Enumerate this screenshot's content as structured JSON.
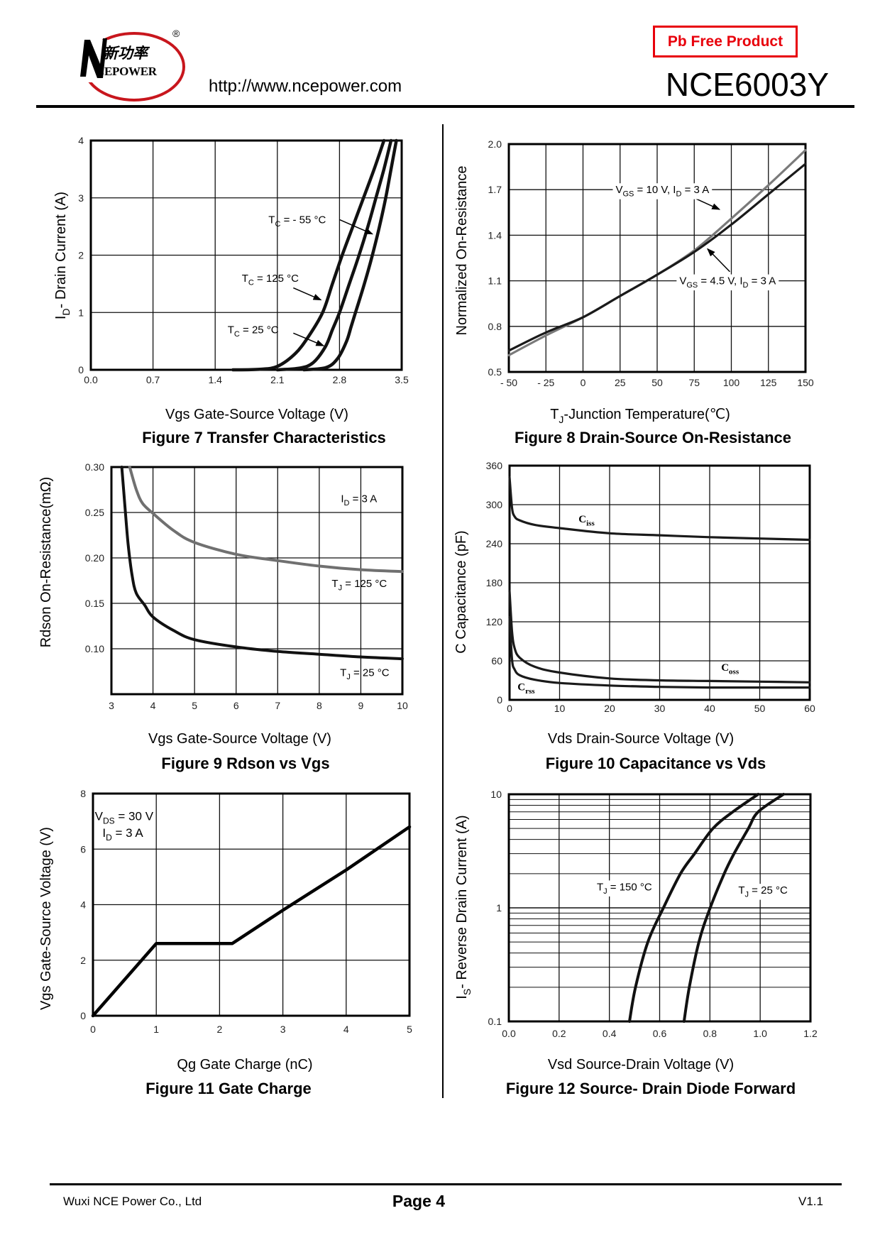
{
  "header": {
    "logo": {
      "cn": "新功率",
      "en": "CEPOWER",
      "registered": "®"
    },
    "url": "http://www.ncepower.com",
    "badge": "Pb Free Product",
    "part_number": "NCE6003Y",
    "brand_color": "#c8161d",
    "badge_color": "#e8000b"
  },
  "footer": {
    "company": "Wuxi NCE Power Co., Ltd",
    "page": "Page 4",
    "version": "V1.1"
  },
  "chart_data": [
    {
      "type": "line",
      "title": "Figure 7 Transfer Characteristics",
      "xlabel": {
        "main": "Vgs Gate-Source Voltage (V)"
      },
      "ylabel": {
        "main": "I",
        "sub": "D",
        "rest": "- Drain Current (A)"
      },
      "xlim": [
        0,
        3.5
      ],
      "ylim": [
        0,
        4
      ],
      "xticks": [
        0,
        0.7,
        1.4,
        2.1,
        2.8,
        3.5
      ],
      "xtick_labels": [
        "0.0",
        "0.7",
        "1.4",
        "2.1",
        "2.8",
        "3.5"
      ],
      "yticks": [
        0,
        1,
        2,
        3,
        4
      ],
      "ytick_labels": [
        "0",
        "1",
        "2",
        "3",
        "4"
      ],
      "grid": true,
      "series": [
        {
          "label": {
            "main": "T",
            "sub": "C",
            "rest": " = 125 °C"
          },
          "color": "#111111",
          "x": [
            1.6,
            1.9,
            2.1,
            2.3,
            2.45,
            2.61,
            2.72,
            2.83,
            2.95,
            3.07,
            3.19,
            3.3
          ],
          "y": [
            0,
            0.01,
            0.06,
            0.28,
            0.58,
            1.0,
            1.5,
            2.0,
            2.5,
            3.0,
            3.5,
            4.0
          ]
        },
        {
          "label": {
            "main": "T",
            "sub": "C",
            "rest": " = 25 °C"
          },
          "color": "#111111",
          "x": [
            2.1,
            2.35,
            2.5,
            2.64,
            2.72,
            2.8,
            2.91,
            3.02,
            3.12,
            3.21,
            3.3,
            3.38
          ],
          "y": [
            0,
            0.03,
            0.12,
            0.4,
            0.7,
            1.0,
            1.5,
            2.0,
            2.5,
            3.0,
            3.5,
            4.0
          ]
        },
        {
          "label": {
            "main": "T",
            "sub": "C",
            "rest": " = - 55 °C"
          },
          "color": "#111111",
          "x": [
            2.4,
            2.65,
            2.78,
            2.88,
            2.93,
            2.98,
            3.08,
            3.17,
            3.25,
            3.32,
            3.38,
            3.44
          ],
          "y": [
            0,
            0.04,
            0.2,
            0.5,
            0.75,
            1.0,
            1.5,
            2.0,
            2.5,
            3.0,
            3.5,
            4.0
          ]
        }
      ]
    },
    {
      "type": "line",
      "title": "Figure 8 Drain-Source On-Resistance",
      "xlabel": {
        "main": "T",
        "sub": "J",
        "rest": "-Junction Temperature(℃)"
      },
      "ylabel": {
        "main": "Normalized On-Resistance"
      },
      "xlim": [
        -50,
        150
      ],
      "ylim": [
        0.5,
        2.0
      ],
      "xticks": [
        -50,
        -25,
        0,
        25,
        50,
        75,
        100,
        125,
        150
      ],
      "xtick_labels": [
        "- 50",
        "- 25",
        "0",
        "25",
        "50",
        "75",
        "100",
        "125",
        "150"
      ],
      "yticks": [
        0.5,
        0.8,
        1.1,
        1.4,
        1.7,
        2.0
      ],
      "ytick_labels": [
        "0.5",
        "0.8",
        "1.1",
        "1.4",
        "1.7",
        "2.0"
      ],
      "grid": true,
      "series": [
        {
          "label": {
            "main": "V",
            "sub": "GS",
            "rest": " = 10 V, I",
            "sub2": "D",
            "rest2": " = 3 A"
          },
          "color": "#7a7a7a",
          "x": [
            -50,
            -25,
            0,
            25,
            50,
            75,
            100,
            125,
            150
          ],
          "y": [
            0.61,
            0.74,
            0.86,
            1.0,
            1.14,
            1.3,
            1.51,
            1.73,
            1.96
          ]
        },
        {
          "label": {
            "main": "V",
            "sub": "GS",
            "rest": " = 4.5 V, I",
            "sub2": "D",
            "rest2": " = 3 A"
          },
          "color": "#1a1a1a",
          "x": [
            -50,
            -25,
            0,
            25,
            50,
            75,
            100,
            125,
            150
          ],
          "y": [
            0.64,
            0.76,
            0.86,
            1.0,
            1.14,
            1.29,
            1.47,
            1.67,
            1.87
          ]
        }
      ]
    },
    {
      "type": "line",
      "title": "Figure 9 Rdson vs Vgs",
      "xlabel": {
        "main": "Vgs Gate-Source Voltage (V)"
      },
      "ylabel": {
        "main": "Rdson On-Resistance(mΩ)"
      },
      "xlim": [
        3,
        10
      ],
      "ylim": [
        0.05,
        0.3
      ],
      "xticks": [
        3,
        4,
        5,
        6,
        7,
        8,
        9,
        10
      ],
      "xtick_labels": [
        "3",
        "4",
        "5",
        "6",
        "7",
        "8",
        "9",
        "10"
      ],
      "yticks": [
        0.1,
        0.15,
        0.2,
        0.25,
        0.3
      ],
      "ytick_labels": [
        "0.10",
        "0.15",
        "0.20",
        "0.25",
        "0.30"
      ],
      "grid": true,
      "notes": [
        {
          "main": "I",
          "sub": "D",
          "rest": " = 3 A"
        }
      ],
      "series": [
        {
          "label": {
            "main": "T",
            "sub": "J",
            "rest": " = 125 °C"
          },
          "color": "#707070",
          "x": [
            3.44,
            3.6,
            3.75,
            4,
            4.5,
            5,
            6,
            7,
            8,
            9,
            10
          ],
          "y": [
            0.3,
            0.275,
            0.26,
            0.249,
            0.23,
            0.217,
            0.204,
            0.197,
            0.191,
            0.187,
            0.185
          ]
        },
        {
          "label": {
            "main": "T",
            "sub": "J",
            "rest": " = 25 °C"
          },
          "color": "#111111",
          "x": [
            3.25,
            3.32,
            3.4,
            3.5,
            3.6,
            3.8,
            4,
            4.5,
            5,
            6,
            7,
            8,
            9,
            10
          ],
          "y": [
            0.3,
            0.26,
            0.216,
            0.18,
            0.161,
            0.148,
            0.135,
            0.12,
            0.11,
            0.102,
            0.097,
            0.094,
            0.091,
            0.089
          ]
        }
      ]
    },
    {
      "type": "line",
      "title": "Figure 10 Capacitance vs Vds",
      "xlabel": {
        "main": "Vds Drain-Source Voltage (V)"
      },
      "ylabel": {
        "main": "C Capacitance (pF)"
      },
      "xlim": [
        0,
        60
      ],
      "ylim": [
        0,
        360
      ],
      "xticks": [
        0,
        10,
        20,
        30,
        40,
        50,
        60
      ],
      "xtick_labels": [
        "0",
        "10",
        "20",
        "30",
        "40",
        "50",
        "60"
      ],
      "yticks": [
        0,
        60,
        120,
        180,
        240,
        300,
        360
      ],
      "ytick_labels": [
        "0",
        "60",
        "120",
        "180",
        "240",
        "300",
        "360"
      ],
      "grid": true,
      "series": [
        {
          "label": {
            "main": "C",
            "sub": "iss"
          },
          "color": "#1a1a1a",
          "x": [
            0,
            0.5,
            1,
            2,
            5,
            10,
            20,
            30,
            40,
            50,
            60
          ],
          "y": [
            342,
            295,
            282,
            276,
            269,
            264,
            256,
            253,
            250,
            248,
            246
          ]
        },
        {
          "label": {
            "main": "C",
            "sub": "oss"
          },
          "color": "#1a1a1a",
          "x": [
            0,
            0.5,
            1,
            2,
            5,
            10,
            20,
            30,
            40,
            50,
            60
          ],
          "y": [
            167,
            105,
            80,
            65,
            51,
            42,
            33,
            30,
            29,
            28,
            27
          ]
        },
        {
          "label": {
            "main": "C",
            "sub": "rss"
          },
          "color": "#1a1a1a",
          "x": [
            0,
            0.5,
            1,
            2,
            5,
            10,
            20,
            30,
            40,
            50,
            60
          ],
          "y": [
            127,
            62,
            47,
            38,
            31,
            26,
            22,
            20,
            19,
            19,
            19
          ]
        }
      ]
    },
    {
      "type": "line",
      "title": "Figure 11 Gate Charge",
      "xlabel": {
        "main": "Qg Gate Charge (nC)"
      },
      "ylabel": {
        "main": "Vgs Gate-Source Voltage (V)"
      },
      "xlim": [
        0,
        5
      ],
      "ylim": [
        0,
        8
      ],
      "xticks": [
        0,
        1,
        2,
        3,
        4,
        5
      ],
      "xtick_labels": [
        "0",
        "1",
        "2",
        "3",
        "4",
        "5"
      ],
      "yticks": [
        0,
        2,
        4,
        6,
        8
      ],
      "ytick_labels": [
        "0",
        "2",
        "4",
        "6",
        "8"
      ],
      "grid": true,
      "notes": [
        {
          "main": "V",
          "sub": "DS",
          "rest": " = 30 V"
        },
        {
          "main": "I",
          "sub": "D",
          "rest": " =  3 A"
        }
      ],
      "series": [
        {
          "color": "#000000",
          "x": [
            0,
            1,
            2.2,
            3,
            4,
            5
          ],
          "y": [
            0,
            2.6,
            2.6,
            3.8,
            5.25,
            6.8
          ]
        }
      ]
    },
    {
      "type": "line",
      "title": "Figure 12 Source- Drain Diode Forward",
      "xlabel": {
        "main": "Vsd Source-Drain Voltage (V)"
      },
      "ylabel": {
        "main": "I",
        "sub": "S",
        "rest": "- Reverse Drain Current (A)"
      },
      "xlim": [
        0,
        1.2
      ],
      "ylim": [
        0.1,
        10
      ],
      "yscale": "log",
      "xticks": [
        0,
        0.2,
        0.4,
        0.6,
        0.8,
        1.0,
        1.2
      ],
      "xtick_labels": [
        "0.0",
        "0.2",
        "0.4",
        "0.6",
        "0.8",
        "1.0",
        "1.2"
      ],
      "yticks": [
        0.1,
        1,
        10
      ],
      "ytick_labels": [
        "0.1",
        "1",
        "10"
      ],
      "grid": true,
      "series": [
        {
          "label": {
            "main": "T",
            "sub": "J",
            "rest": " = 150 °C"
          },
          "color": "#111111",
          "x": [
            0.48,
            0.504,
            0.553,
            0.615,
            0.683,
            0.739,
            0.812,
            0.891,
            0.992
          ],
          "y": [
            0.1,
            0.2,
            0.5,
            1,
            2,
            3,
            5,
            7,
            10
          ]
        },
        {
          "label": {
            "main": "T",
            "sub": "J",
            "rest": " = 25 °C"
          },
          "color": "#111111",
          "x": [
            0.697,
            0.718,
            0.756,
            0.801,
            0.857,
            0.896,
            0.953,
            0.992,
            1.093
          ],
          "y": [
            0.1,
            0.2,
            0.5,
            1,
            2,
            3,
            5,
            7,
            10
          ]
        }
      ]
    }
  ]
}
